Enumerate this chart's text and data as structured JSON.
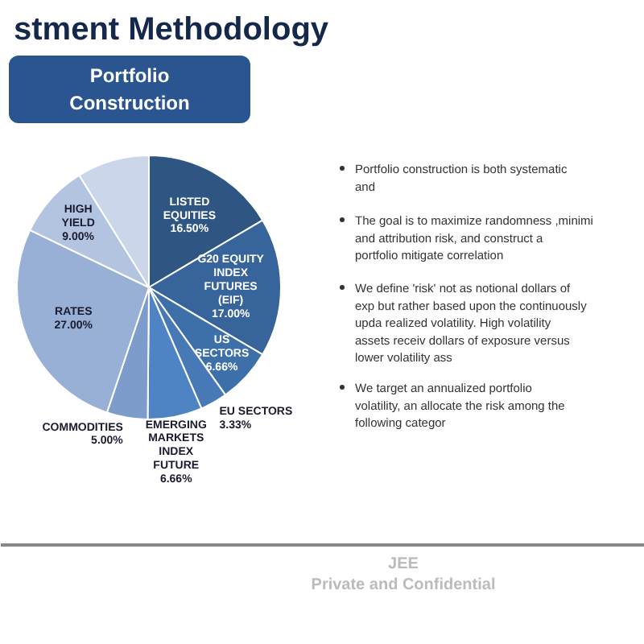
{
  "chart_data": {
    "type": "pie",
    "title": "stment Methodology",
    "subtitle": "Portfolio Construction",
    "categories": [
      "LISTED EQUITIES",
      "G20 EQUITY INDEX FUTURES (EIF)",
      "US SECTORS",
      "EU SECTORS",
      "EMERGING MARKETS INDEX FUTURE",
      "COMMODITIES",
      "RATES",
      "HIGH YIELD",
      null
    ],
    "values": [
      16.5,
      17.0,
      6.66,
      3.33,
      6.66,
      5.0,
      27.0,
      9.0,
      8.85
    ],
    "value_labels": [
      "16.50%",
      "17.00%",
      "6.66%",
      "3.33%",
      "6.66%",
      "5.00%",
      "27.00%",
      "9.00%",
      null
    ],
    "colors": [
      "#2f5682",
      "#36649b",
      "#3d6fa9",
      "#4679b6",
      "#4f84c4",
      "#7d9ccc",
      "#98b0d6",
      "#b3c4e0",
      "#cbd6ea"
    ],
    "annotations": [
      "Portfolio construction is both systematic and",
      "The goal is to maximize randomness ,minimi and attribution risk, and construct a portfolio mitigate correlation",
      "We define 'risk' not as notional dollars of exp but rather based upon the continuously upda realized volatility. High volatility assets receiv dollars of exposure versus lower volatility ass",
      "We target an annualized portfolio volatility, an allocate the risk among the following categor",
      "JEE",
      "Private and Confidential"
    ]
  }
}
